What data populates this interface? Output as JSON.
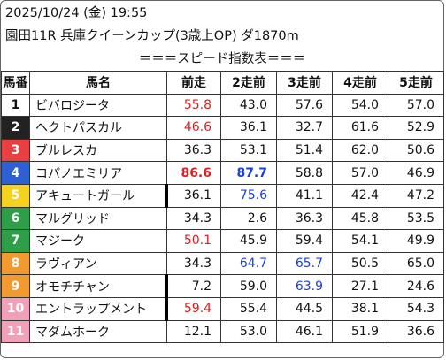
{
  "header": {
    "datetime": "2025/10/24 (金) 19:55",
    "race": "園田11R 兵庫クイーンカップ(3歳上OP) ダ1870m",
    "table_title": "＝＝＝スピード指数表＝＝＝"
  },
  "columns": [
    "馬番",
    "馬名",
    "前走",
    "2走前",
    "3走前",
    "4走前",
    "5走前"
  ],
  "colors": {
    "frame_1": "#ffffff",
    "frame_2": "#222222",
    "frame_3": "#e84040",
    "frame_4": "#2e60d4",
    "frame_5": "#f5d21f",
    "frame_6": "#2e9e48",
    "frame_7": "#2e9e48",
    "frame_8": "#f09a30",
    "frame_9": "#f09a30",
    "frame_10": "#f2a0b8",
    "frame_11": "#f2a0b8",
    "highlight_red": "#e01e1e",
    "highlight_blue": "#1a3fe0"
  },
  "rows": [
    {
      "num": "1",
      "name": "ビバロジータ",
      "v": [
        "55.8",
        "43.0",
        "57.6",
        "54.0",
        "57.0"
      ]
    },
    {
      "num": "2",
      "name": "ヘクトパスカル",
      "v": [
        "46.6",
        "36.1",
        "32.7",
        "61.6",
        "52.9"
      ]
    },
    {
      "num": "3",
      "name": "ブルレスカ",
      "v": [
        "36.3",
        "53.1",
        "51.4",
        "62.0",
        "50.6"
      ]
    },
    {
      "num": "4",
      "name": "コパノエミリア",
      "v": [
        "86.6",
        "87.7",
        "58.8",
        "57.0",
        "46.9"
      ]
    },
    {
      "num": "5",
      "name": "アキュートガール",
      "v": [
        "36.1",
        "75.6",
        "41.1",
        "42.4",
        "47.2"
      ]
    },
    {
      "num": "6",
      "name": "マルグリッド",
      "v": [
        "34.3",
        "2.6",
        "36.3",
        "45.8",
        "53.5"
      ]
    },
    {
      "num": "7",
      "name": "マジーク",
      "v": [
        "50.1",
        "45.9",
        "59.4",
        "54.1",
        "49.9"
      ]
    },
    {
      "num": "8",
      "name": "ラヴィアン",
      "v": [
        "34.3",
        "64.7",
        "65.7",
        "50.5",
        "65.0"
      ]
    },
    {
      "num": "9",
      "name": "オモチチャン",
      "v": [
        "7.2",
        "59.0",
        "63.9",
        "27.1",
        "24.6"
      ]
    },
    {
      "num": "10",
      "name": "エントラップメント",
      "v": [
        "59.4",
        "55.4",
        "44.5",
        "38.1",
        "54.3"
      ]
    },
    {
      "num": "11",
      "name": "マダムホーク",
      "v": [
        "12.1",
        "53.0",
        "46.1",
        "51.9",
        "36.6"
      ]
    }
  ]
}
